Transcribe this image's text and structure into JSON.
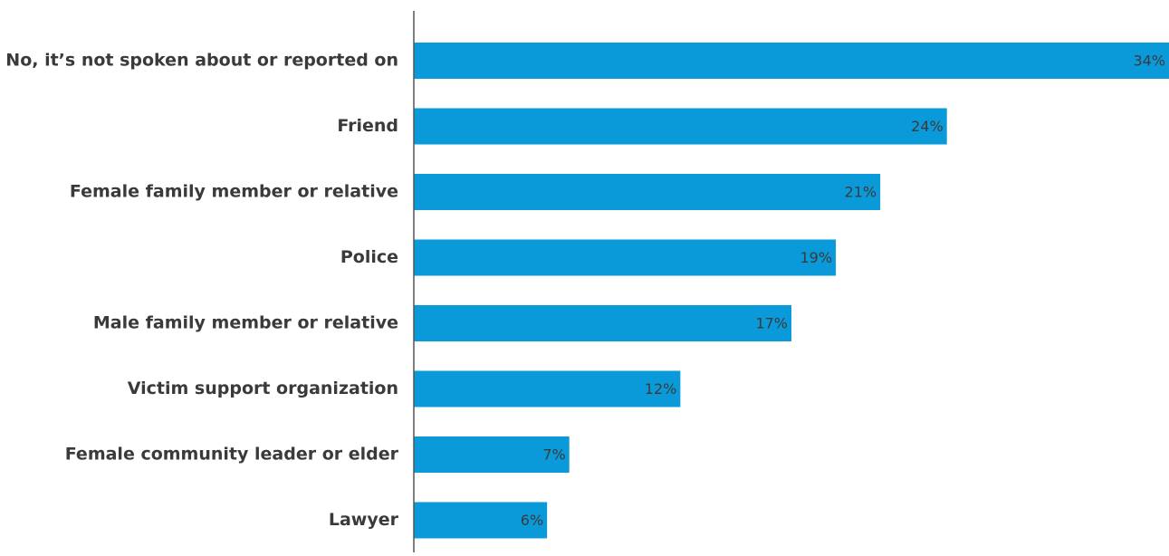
{
  "chart_data": {
    "type": "bar",
    "orientation": "horizontal",
    "title": "",
    "xlabel": "",
    "ylabel": "",
    "categories": [
      "No, it’s not spoken about or reported on",
      "Friend",
      "Female family member or relative",
      "Police",
      "Male family member or relative",
      "Victim support organization",
      "Female community leader or elder",
      "Lawyer"
    ],
    "values": [
      34,
      24,
      21,
      19,
      17,
      12,
      7,
      6
    ],
    "value_labels": [
      "34%",
      "24%",
      "21%",
      "19%",
      "17%",
      "12%",
      "7%",
      "6%"
    ],
    "xlim": [
      0,
      34
    ],
    "grid": false,
    "bar_color": "#0a9ad9",
    "axis_color": "#555555",
    "text_color": "#3a3a3a"
  }
}
